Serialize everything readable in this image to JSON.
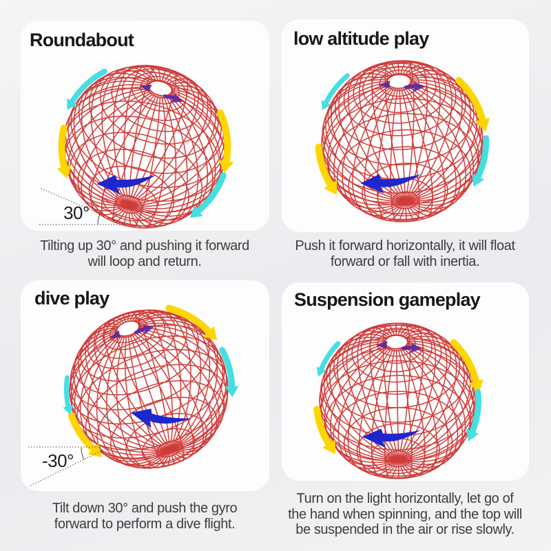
{
  "colors": {
    "background": "#edeff1",
    "card": "#fdfdfd",
    "title": "#171717",
    "caption": "#3d3d3d",
    "annotation": "#1c1c1c",
    "wire_red": "#cc2e2c",
    "arrow_yellow": "#fdd600",
    "arrow_cyan": "#45dfe2",
    "arrow_blue": "#1e27cc",
    "arrow_purple": "#56289e",
    "pole_hole": "#ffffff"
  },
  "sections": [
    {
      "id": "roundabout",
      "title": "Roundabout",
      "angle_label": "30°",
      "caption_lines": [
        "Tilting up 30° and pushing it forward",
        "will loop and return."
      ]
    },
    {
      "id": "low-altitude-play",
      "title": "low altitude play",
      "caption_lines": [
        "Push it forward horizontally, it will float",
        "forward or fall with inertia."
      ]
    },
    {
      "id": "dive-play",
      "title": "dive play",
      "angle_label": "-30°",
      "caption_lines": [
        "Tilt down 30° and push the gyro",
        "forward to perform a dive flight."
      ]
    },
    {
      "id": "suspension-gameplay",
      "title": "Suspension gameplay",
      "caption_lines": [
        "Turn on the light horizontally, let go of",
        "the hand when spinning, and the top will",
        "be suspended in the air or rise slowly."
      ]
    }
  ]
}
